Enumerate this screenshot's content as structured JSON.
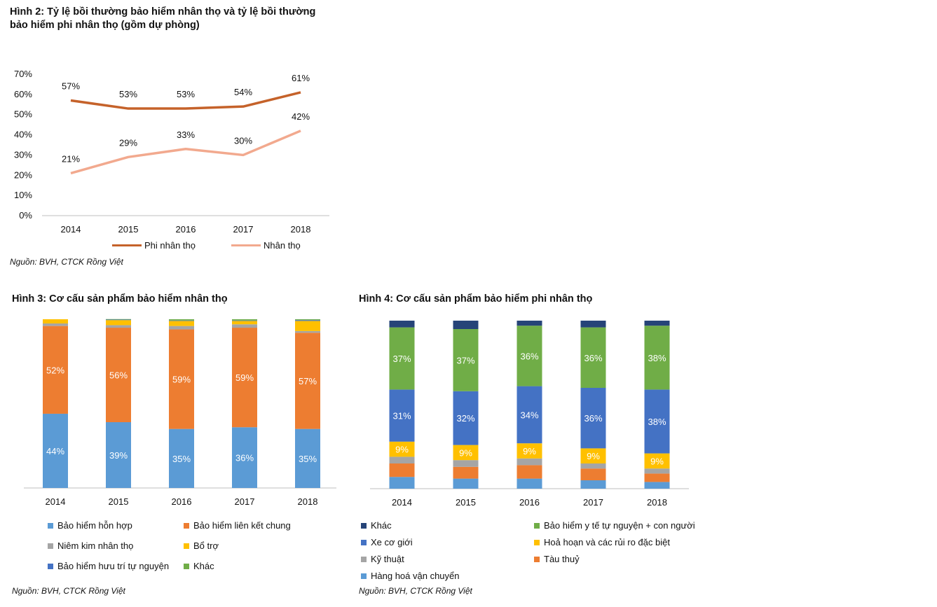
{
  "figures": {
    "fig2": {
      "title": "Hình 2: Tỷ lệ bồi thường bảo hiểm nhân thọ và tỷ lệ bồi thường bảo hiểm phi nhân thọ (gồm dự phòng)",
      "source": "Nguồn: BVH, CTCK Rồng Việt"
    },
    "fig3": {
      "title": "Hình 3: Cơ cấu sản phẩm bảo hiểm nhân thọ",
      "source": "Nguồn: BVH, CTCK Rồng Việt"
    },
    "fig4": {
      "title": "Hình 4: Cơ cấu sản phẩm bảo hiểm phi nhân thọ",
      "source": "Nguồn: BVH, CTCK Rồng Việt"
    }
  },
  "chart_data": [
    {
      "type": "line",
      "categories": [
        "2014",
        "2015",
        "2016",
        "2017",
        "2018"
      ],
      "ylim": [
        0,
        70
      ],
      "yticks": [
        "0%",
        "10%",
        "20%",
        "30%",
        "40%",
        "50%",
        "60%",
        "70%"
      ],
      "grid": false,
      "legend_position": "bottom",
      "series": [
        {
          "name": "Phi nhân thọ",
          "values": [
            57,
            53,
            53,
            54,
            61
          ],
          "labels": [
            "57%",
            "53%",
            "53%",
            "54%",
            "61%"
          ],
          "color": "#C5622A"
        },
        {
          "name": "Nhân thọ",
          "values": [
            21,
            29,
            33,
            30,
            42
          ],
          "labels": [
            "21%",
            "29%",
            "33%",
            "30%",
            "42%"
          ],
          "color": "#F2A98E"
        }
      ]
    },
    {
      "type": "bar",
      "stacked": true,
      "categories": [
        "2014",
        "2015",
        "2016",
        "2017",
        "2018"
      ],
      "ylim": [
        0,
        100
      ],
      "legend_position": "bottom",
      "series": [
        {
          "name": "Bảo hiểm hỗn hợp",
          "color": "#5B9BD5",
          "values": [
            44,
            39,
            35,
            36,
            35
          ],
          "labels": [
            "44%",
            "39%",
            "35%",
            "36%",
            "35%"
          ]
        },
        {
          "name": "Bảo hiểm liên kết chung",
          "color": "#ED7D31",
          "values": [
            52,
            56,
            59,
            59,
            57
          ],
          "labels": [
            "52%",
            "56%",
            "59%",
            "59%",
            "57%"
          ]
        },
        {
          "name": "Niêm kim nhân thọ",
          "color": "#A5A5A5",
          "values": [
            1.5,
            1.5,
            2,
            2,
            1
          ],
          "labels": [
            "",
            "",
            "",
            "",
            ""
          ]
        },
        {
          "name": "Bổ trợ",
          "color": "#FFC000",
          "values": [
            2.5,
            3,
            3,
            2,
            6
          ],
          "labels": [
            "",
            "",
            "",
            "",
            ""
          ]
        },
        {
          "name": "Bảo hiểm hưu trí tự nguyện",
          "color": "#4472C4",
          "values": [
            0,
            0.3,
            0.3,
            0.3,
            0.5
          ],
          "labels": [
            "",
            "",
            "",
            "",
            ""
          ]
        },
        {
          "name": "Khác",
          "color": "#70AD47",
          "values": [
            0,
            0.3,
            0.7,
            0.7,
            0.5
          ],
          "labels": [
            "",
            "",
            "",
            "",
            ""
          ]
        }
      ]
    },
    {
      "type": "bar",
      "stacked": true,
      "categories": [
        "2014",
        "2015",
        "2016",
        "2017",
        "2018"
      ],
      "ylim": [
        0,
        100
      ],
      "legend_position": "bottom",
      "series": [
        {
          "name": "Hàng hoá vận chuyển",
          "color": "#5B9BD5",
          "values": [
            7,
            6,
            6,
            5,
            4
          ],
          "labels": [
            "",
            "",
            "",
            "",
            ""
          ]
        },
        {
          "name": "Tàu thuỷ",
          "color": "#ED7D31",
          "values": [
            8,
            7,
            8,
            7,
            5
          ],
          "labels": [
            "",
            "",
            "",
            "",
            ""
          ]
        },
        {
          "name": "Kỹ thuật",
          "color": "#A5A5A5",
          "values": [
            4,
            4,
            4,
            3,
            3
          ],
          "labels": [
            "",
            "",
            "",
            "",
            ""
          ]
        },
        {
          "name": "Hoả hoạn và các rủi ro đặc biệt",
          "color": "#FFC000",
          "values": [
            9,
            9,
            9,
            9,
            9
          ],
          "labels": [
            "9%",
            "9%",
            "9%",
            "9%",
            "9%"
          ]
        },
        {
          "name": "Xe cơ giới",
          "color": "#4472C4",
          "values": [
            31,
            32,
            34,
            36,
            38
          ],
          "labels": [
            "31%",
            "32%",
            "34%",
            "36%",
            "38%"
          ]
        },
        {
          "name": "Bảo hiểm y tế tự nguyện + con người",
          "color": "#70AD47",
          "values": [
            37,
            37,
            36,
            36,
            38
          ],
          "labels": [
            "37%",
            "37%",
            "36%",
            "36%",
            "38%"
          ]
        },
        {
          "name": "Khác",
          "color": "#264478",
          "values": [
            4,
            5,
            3,
            4,
            3
          ],
          "labels": [
            "",
            "",
            "",
            "",
            ""
          ]
        }
      ]
    }
  ]
}
